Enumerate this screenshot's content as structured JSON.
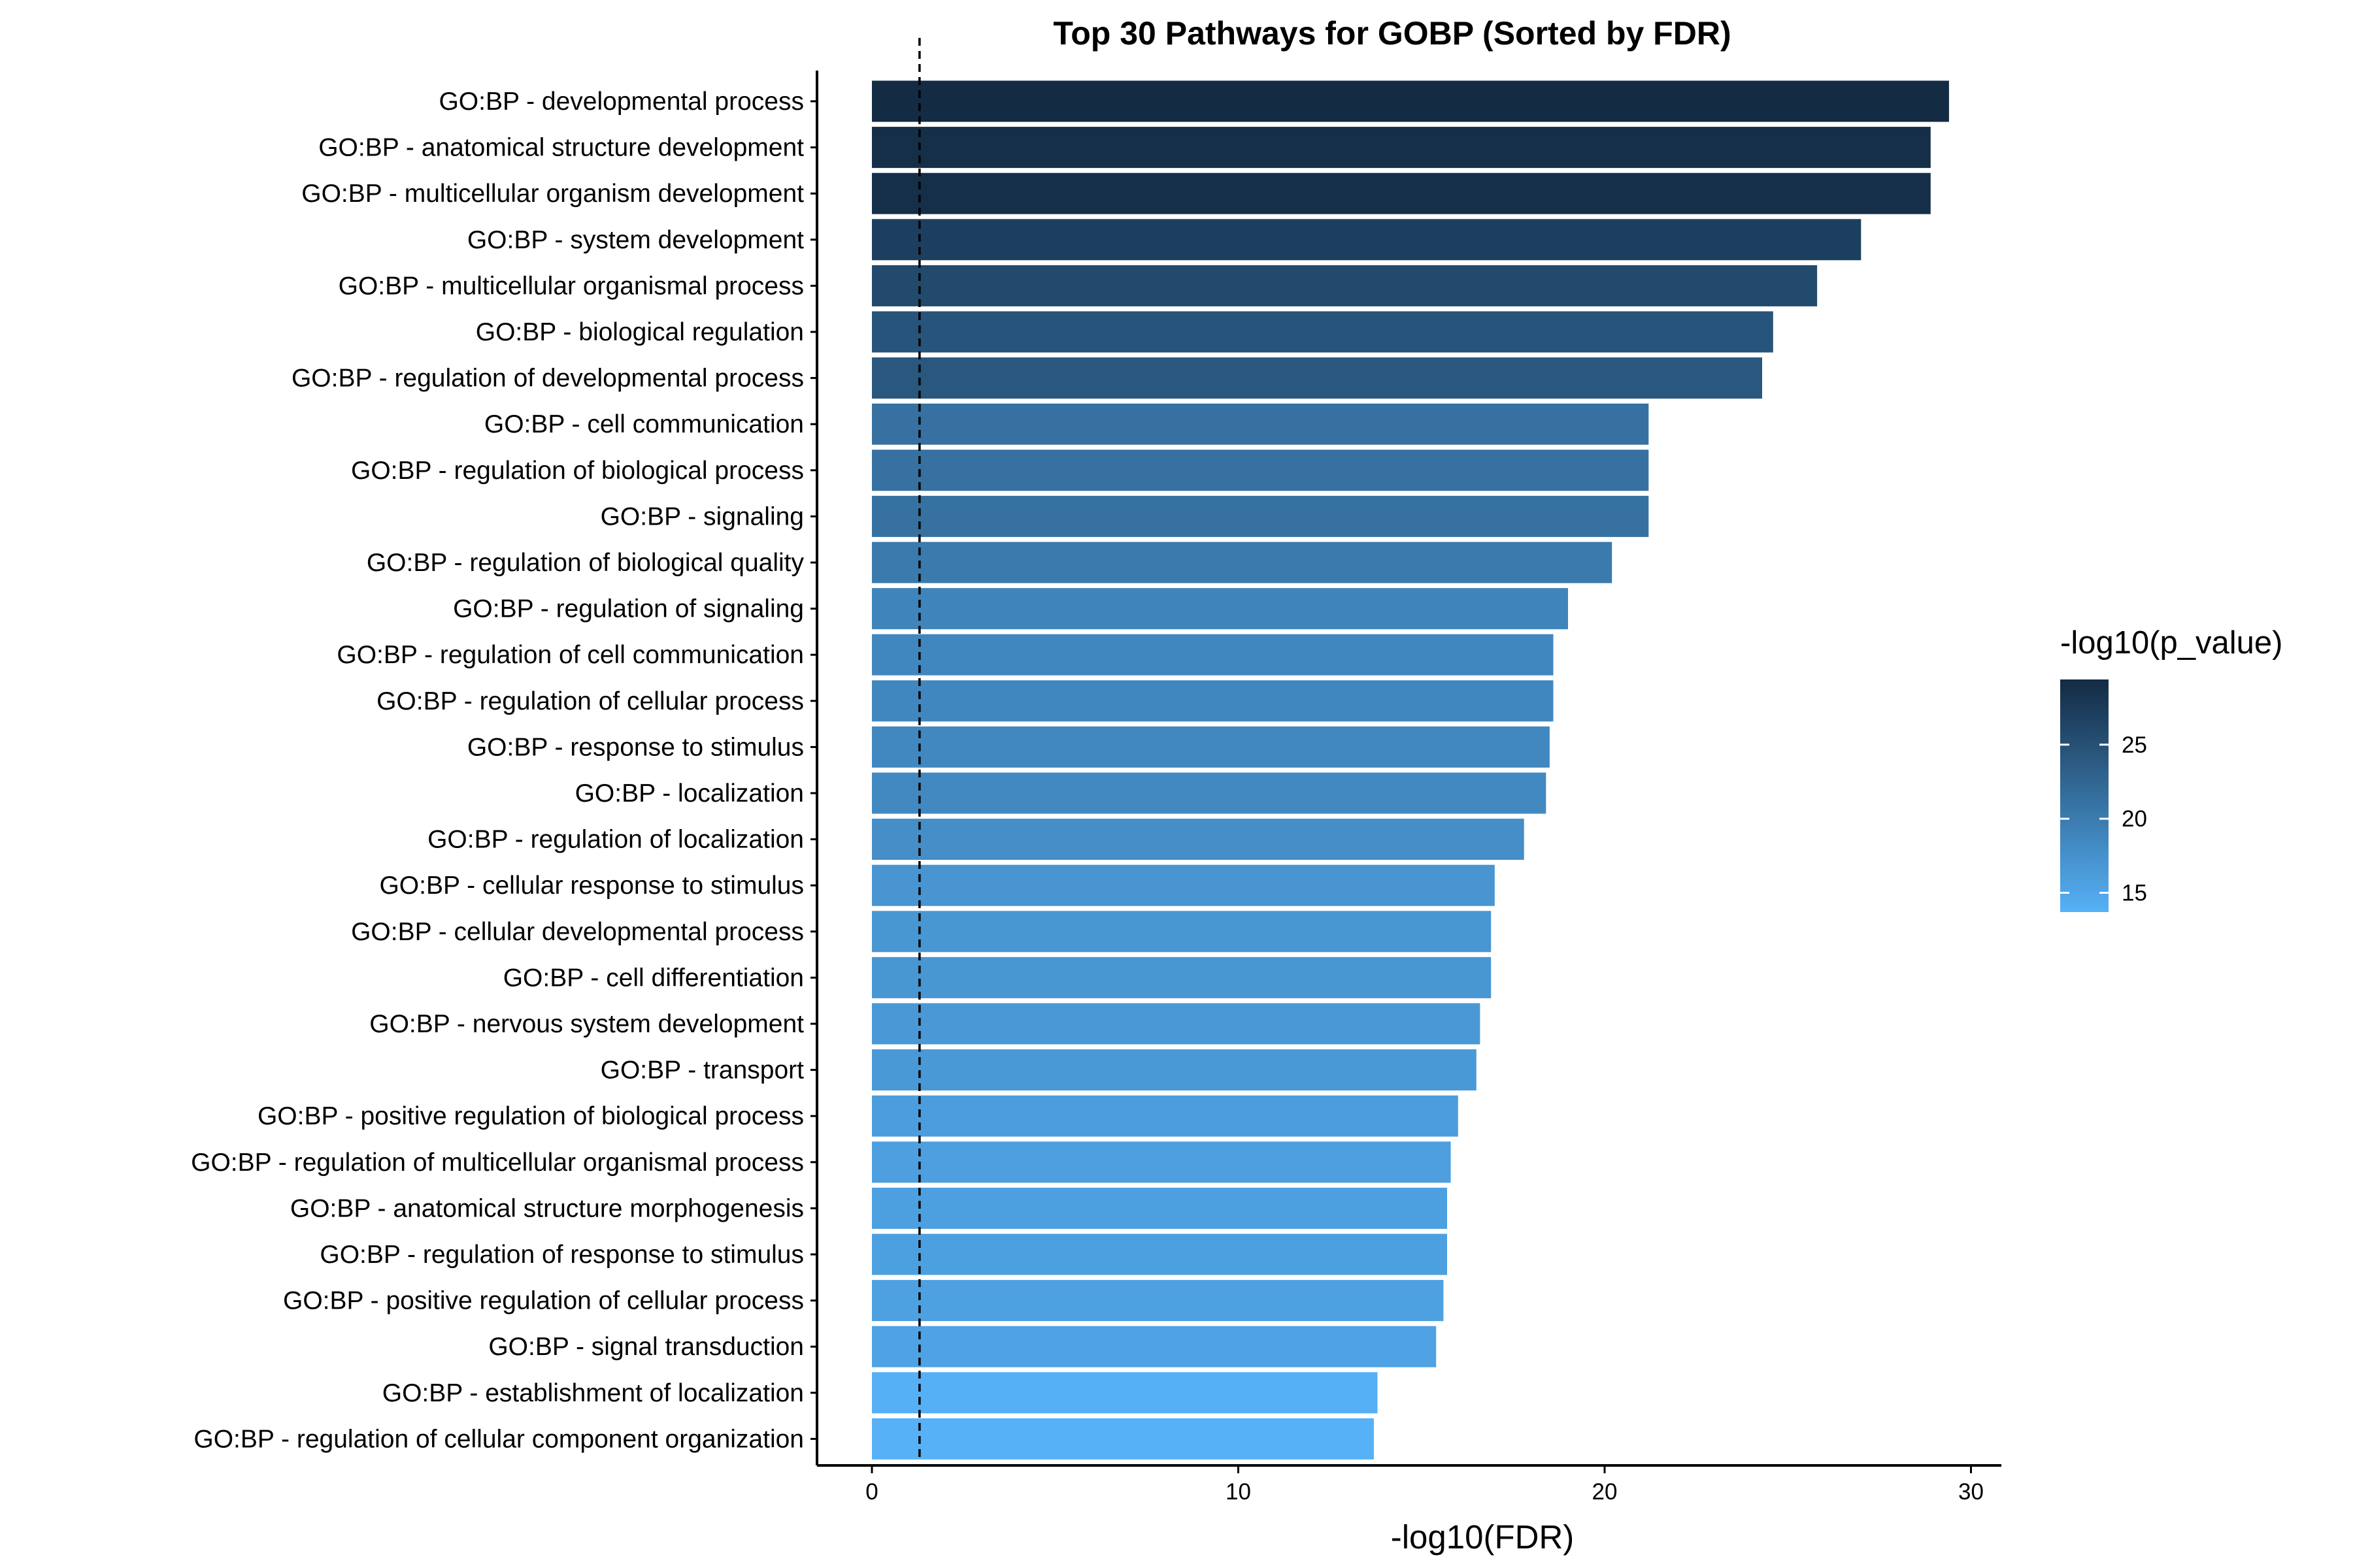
{
  "chart_data": {
    "type": "bar",
    "orientation": "horizontal",
    "title": "Top 30 Pathways for GOBP (Sorted by FDR)",
    "xlabel": "-log10(FDR)",
    "ylabel": "",
    "xlim": [
      0,
      30
    ],
    "xticks": [
      0,
      10,
      20,
      30
    ],
    "grid": false,
    "reference_line": {
      "x": 1.3,
      "style": "dashed"
    },
    "categories": [
      "GO:BP - developmental process",
      "GO:BP - anatomical structure development",
      "GO:BP - multicellular organism development",
      "GO:BP - system development",
      "GO:BP - multicellular organismal process",
      "GO:BP - biological regulation",
      "GO:BP - regulation of developmental process",
      "GO:BP - cell communication",
      "GO:BP - regulation of biological process",
      "GO:BP - signaling",
      "GO:BP - regulation of biological quality",
      "GO:BP - regulation of signaling",
      "GO:BP - regulation of cell communication",
      "GO:BP - regulation of cellular process",
      "GO:BP - response to stimulus",
      "GO:BP - localization",
      "GO:BP - regulation of localization",
      "GO:BP - cellular response to stimulus",
      "GO:BP - cellular developmental process",
      "GO:BP - cell differentiation",
      "GO:BP - nervous system development",
      "GO:BP - transport",
      "GO:BP - positive regulation of biological process",
      "GO:BP - regulation of multicellular organismal process",
      "GO:BP - anatomical structure morphogenesis",
      "GO:BP - regulation of response to stimulus",
      "GO:BP - positive regulation of cellular process",
      "GO:BP - signal transduction",
      "GO:BP - establishment of localization",
      "GO:BP - regulation of cellular component organization"
    ],
    "values": [
      29.4,
      28.9,
      28.9,
      27.0,
      25.8,
      24.6,
      24.3,
      21.2,
      21.2,
      21.2,
      20.2,
      19.0,
      18.6,
      18.6,
      18.5,
      18.4,
      17.8,
      17.0,
      16.9,
      16.9,
      16.6,
      16.5,
      16.0,
      15.8,
      15.7,
      15.7,
      15.6,
      15.4,
      13.8,
      13.7
    ],
    "color_values": [
      29.4,
      28.9,
      28.9,
      27.0,
      25.8,
      24.6,
      24.3,
      21.2,
      21.2,
      21.2,
      20.2,
      19.0,
      18.6,
      18.6,
      18.5,
      18.4,
      17.8,
      17.0,
      16.9,
      16.9,
      16.6,
      16.5,
      16.0,
      15.8,
      15.7,
      15.7,
      15.6,
      15.4,
      13.8,
      13.7
    ],
    "legend": {
      "title": "-log10(p_value)",
      "placement": "right",
      "ticks": [
        15,
        20,
        25
      ],
      "range": [
        13.7,
        29.4
      ],
      "color_low": "#56B1F7",
      "color_high": "#132B43"
    }
  }
}
